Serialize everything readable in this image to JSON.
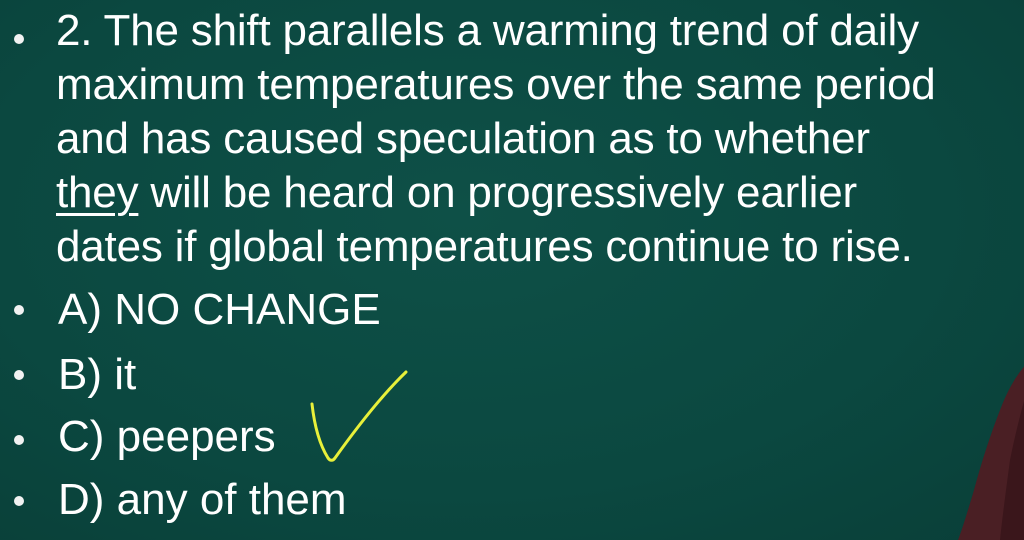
{
  "question": {
    "line1": "2. The shift parallels a warming trend of daily",
    "line2": "maximum temperatures over the same period",
    "line3": "and has caused speculation as to whether",
    "line4_underlined": "they",
    "line4_rest": " will be heard on progressively earlier",
    "line5": "dates if global temperatures continue to rise."
  },
  "options": [
    {
      "label": "A) NO CHANGE"
    },
    {
      "label": "B) it"
    },
    {
      "label": "C) peepers"
    },
    {
      "label": "D) any of them"
    }
  ],
  "annotation": {
    "type": "checkmark",
    "marks_option": "C) peepers",
    "color": "#e8f03a"
  },
  "colors": {
    "background": "#0b4a42",
    "text": "#ffffff"
  }
}
